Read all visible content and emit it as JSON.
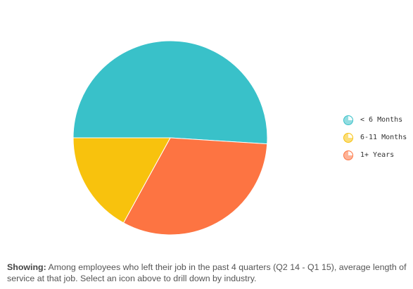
{
  "chart_data": {
    "type": "pie",
    "slices": [
      {
        "label": "< 6 Months",
        "value": 51,
        "color": "#39c1c9"
      },
      {
        "label": "1+ Years",
        "value": 32,
        "color": "#fd7442"
      },
      {
        "label": "6-11 Months",
        "value": 17,
        "color": "#f8c20d"
      }
    ],
    "legend": {
      "position": "right",
      "entries": [
        {
          "label": "< 6 Months",
          "color": "#39c1c9"
        },
        {
          "label": "6-11 Months",
          "color": "#f8c20d"
        },
        {
          "label": "1+ Years",
          "color": "#fd7442"
        }
      ]
    }
  },
  "caption": {
    "lead": "Showing:",
    "text": "Among employees who left their job in the past 4 quarters (Q2 14 - Q1 15), average length of service at that job. Select an icon above to drill down by industry."
  }
}
